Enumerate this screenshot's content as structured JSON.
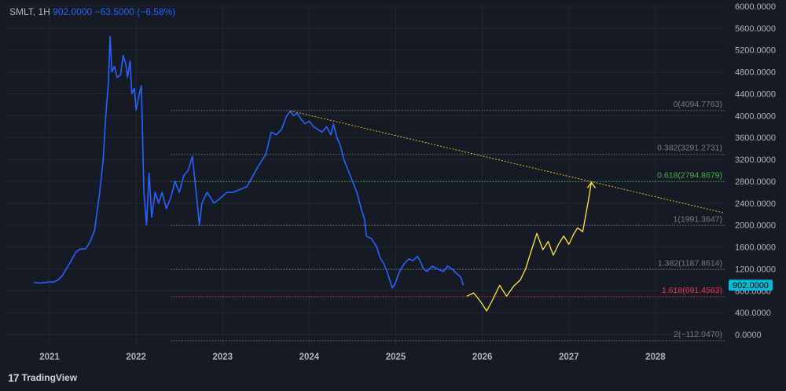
{
  "legend": {
    "symbol": "SMLT",
    "interval": "1H",
    "price": "902.0000",
    "change": "−63.5000 (−6.58%)"
  },
  "brand": {
    "name": "TradingView",
    "logo_icon": "tradingview-logo-icon"
  },
  "price_badge": {
    "text": "902.0000",
    "value": 902,
    "color": "#00bcd4"
  },
  "colors": {
    "background": "#161a25",
    "grid": "#232733",
    "axis_text": "#b2b5be",
    "price_line": "#2962ff",
    "projection": "#ffeb3b",
    "trendline": "#e6c229",
    "fib_level": "#787b86",
    "fib_0618": "#4caf50",
    "fib_1618": "#f23645"
  },
  "chart_data": {
    "type": "line",
    "yaxis": {
      "min": -200,
      "max": 6000,
      "step": 400,
      "tick_labels": [
        "0.0000",
        "400.0000",
        "800.0000",
        "1200.0000",
        "1600.0000",
        "2000.0000",
        "2400.0000",
        "2800.0000",
        "3200.0000",
        "3600.0000",
        "4000.0000",
        "4400.0000",
        "4800.0000",
        "5200.0000",
        "5600.0000",
        "6000.0000"
      ],
      "position": "right"
    },
    "xaxis": {
      "min": 2020.5,
      "max": 2028.8,
      "ticks": [
        2021,
        2022,
        2023,
        2024,
        2025,
        2026,
        2027,
        2028
      ],
      "tick_labels": [
        "2021",
        "2022",
        "2023",
        "2024",
        "2025",
        "2026",
        "2027",
        "2028"
      ]
    },
    "grid": true,
    "series": [
      {
        "id": "price",
        "points": [
          [
            2020.82,
            950
          ],
          [
            2020.9,
            940
          ],
          [
            2020.98,
            960
          ],
          [
            2021.05,
            960
          ],
          [
            2021.1,
            1000
          ],
          [
            2021.15,
            1080
          ],
          [
            2021.2,
            1220
          ],
          [
            2021.25,
            1350
          ],
          [
            2021.3,
            1500
          ],
          [
            2021.35,
            1560
          ],
          [
            2021.42,
            1570
          ],
          [
            2021.47,
            1700
          ],
          [
            2021.52,
            1900
          ],
          [
            2021.55,
            2250
          ],
          [
            2021.58,
            2600
          ],
          [
            2021.62,
            3200
          ],
          [
            2021.65,
            4000
          ],
          [
            2021.68,
            4600
          ],
          [
            2021.7,
            5450
          ],
          [
            2021.72,
            4800
          ],
          [
            2021.75,
            4900
          ],
          [
            2021.78,
            4700
          ],
          [
            2021.82,
            4750
          ],
          [
            2021.85,
            5100
          ],
          [
            2021.88,
            4950
          ],
          [
            2021.9,
            4700
          ],
          [
            2021.93,
            5000
          ],
          [
            2021.95,
            4400
          ],
          [
            2021.98,
            4500
          ],
          [
            2022.0,
            4100
          ],
          [
            2022.03,
            4350
          ],
          [
            2022.06,
            4550
          ],
          [
            2022.09,
            2600
          ],
          [
            2022.12,
            2000
          ],
          [
            2022.15,
            2950
          ],
          [
            2022.18,
            2150
          ],
          [
            2022.22,
            2600
          ],
          [
            2022.26,
            2400
          ],
          [
            2022.3,
            2600
          ],
          [
            2022.35,
            2300
          ],
          [
            2022.4,
            2500
          ],
          [
            2022.45,
            2800
          ],
          [
            2022.5,
            2600
          ],
          [
            2022.55,
            2900
          ],
          [
            2022.6,
            3000
          ],
          [
            2022.65,
            3250
          ],
          [
            2022.7,
            2500
          ],
          [
            2022.73,
            2000
          ],
          [
            2022.76,
            2400
          ],
          [
            2022.82,
            2600
          ],
          [
            2022.9,
            2400
          ],
          [
            2022.98,
            2500
          ],
          [
            2023.05,
            2600
          ],
          [
            2023.12,
            2600
          ],
          [
            2023.2,
            2650
          ],
          [
            2023.28,
            2700
          ],
          [
            2023.35,
            2900
          ],
          [
            2023.42,
            3100
          ],
          [
            2023.5,
            3300
          ],
          [
            2023.56,
            3700
          ],
          [
            2023.62,
            3650
          ],
          [
            2023.68,
            3750
          ],
          [
            2023.74,
            4000
          ],
          [
            2023.78,
            4080
          ],
          [
            2023.82,
            4000
          ],
          [
            2023.86,
            4050
          ],
          [
            2023.9,
            3950
          ],
          [
            2023.95,
            3850
          ],
          [
            2024.0,
            3900
          ],
          [
            2024.05,
            3800
          ],
          [
            2024.1,
            3750
          ],
          [
            2024.15,
            3700
          ],
          [
            2024.2,
            3800
          ],
          [
            2024.25,
            3650
          ],
          [
            2024.28,
            3850
          ],
          [
            2024.32,
            3600
          ],
          [
            2024.36,
            3450
          ],
          [
            2024.4,
            3200
          ],
          [
            2024.45,
            3000
          ],
          [
            2024.5,
            2800
          ],
          [
            2024.55,
            2600
          ],
          [
            2024.6,
            2300
          ],
          [
            2024.64,
            2100
          ],
          [
            2024.66,
            1800
          ],
          [
            2024.72,
            1750
          ],
          [
            2024.78,
            1600
          ],
          [
            2024.82,
            1400
          ],
          [
            2024.86,
            1300
          ],
          [
            2024.9,
            1150
          ],
          [
            2024.93,
            1000
          ],
          [
            2024.96,
            850
          ],
          [
            2025.0,
            950
          ],
          [
            2025.03,
            1100
          ],
          [
            2025.06,
            1200
          ],
          [
            2025.1,
            1300
          ],
          [
            2025.15,
            1380
          ],
          [
            2025.2,
            1350
          ],
          [
            2025.25,
            1430
          ],
          [
            2025.28,
            1350
          ],
          [
            2025.32,
            1200
          ],
          [
            2025.36,
            1150
          ],
          [
            2025.42,
            1250
          ],
          [
            2025.48,
            1200
          ],
          [
            2025.55,
            1150
          ],
          [
            2025.6,
            1250
          ],
          [
            2025.65,
            1200
          ],
          [
            2025.7,
            1120
          ],
          [
            2025.75,
            1050
          ],
          [
            2025.78,
            902
          ]
        ]
      },
      {
        "id": "projection",
        "points": [
          [
            2025.82,
            700
          ],
          [
            2025.9,
            760
          ],
          [
            2025.98,
            600
          ],
          [
            2026.05,
            430
          ],
          [
            2026.12,
            640
          ],
          [
            2026.2,
            900
          ],
          [
            2026.28,
            700
          ],
          [
            2026.36,
            880
          ],
          [
            2026.44,
            1000
          ],
          [
            2026.5,
            1200
          ],
          [
            2026.56,
            1500
          ],
          [
            2026.63,
            1850
          ],
          [
            2026.7,
            1550
          ],
          [
            2026.76,
            1700
          ],
          [
            2026.82,
            1450
          ],
          [
            2026.88,
            1650
          ],
          [
            2026.94,
            1800
          ],
          [
            2027.0,
            1650
          ],
          [
            2027.06,
            1850
          ],
          [
            2027.1,
            1950
          ],
          [
            2027.16,
            1880
          ],
          [
            2027.22,
            2400
          ],
          [
            2027.26,
            2780
          ]
        ]
      }
    ],
    "trendline": {
      "from": [
        2023.78,
        4090
      ],
      "to": [
        2028.8,
        2220
      ]
    },
    "fib_levels": [
      {
        "ratio": "0",
        "value": 4094.7763,
        "label": "0(4094.7763)",
        "color": "#787b86"
      },
      {
        "ratio": "0.382",
        "value": 3291.2731,
        "label": "0.382(3291.2731)",
        "color": "#787b86"
      },
      {
        "ratio": "0.618",
        "value": 2794.8679,
        "label": "0.618(2794.8679)",
        "color": "#4caf50"
      },
      {
        "ratio": "1",
        "value": 1991.3647,
        "label": "1(1991.3647)",
        "color": "#787b86"
      },
      {
        "ratio": "1.382",
        "value": 1187.8614,
        "label": "1.382(1187.8614)",
        "color": "#787b86"
      },
      {
        "ratio": "1.618",
        "value": 691.4563,
        "label": "1.618(691.4563)",
        "color": "#f23645"
      },
      {
        "ratio": "2",
        "value": -112.047,
        "label": "2(−112.0470)",
        "color": "#787b86"
      }
    ],
    "fib_start_x": 2022.4,
    "fib_end_x": 2028.8
  }
}
